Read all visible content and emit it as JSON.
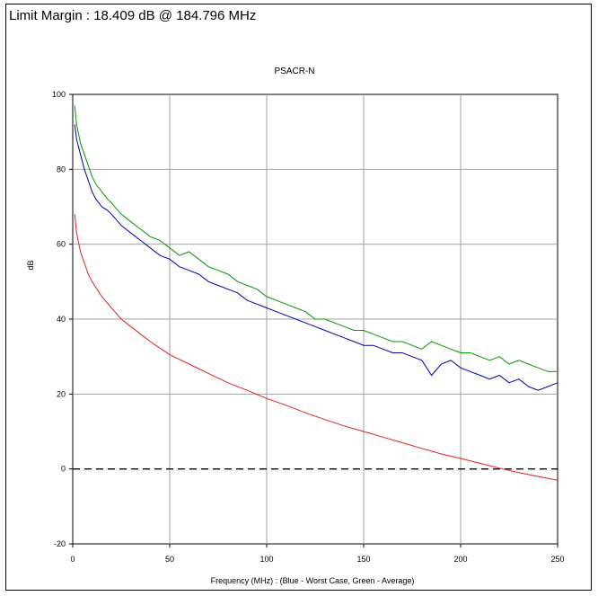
{
  "header": {
    "limit_margin": "Limit Margin : 18.409 dB @ 184.796 MHz"
  },
  "colors": {
    "worst_case": "#0000b0",
    "average": "#009900",
    "limit": "#e02020",
    "grid": "#a0a0a0",
    "zero_line": "#000000"
  },
  "chart_data": {
    "type": "line",
    "title": "PSACR-N",
    "xlabel": "Frequency (MHz) : (Blue - Worst Case, Green - Average)",
    "ylabel": "dB",
    "xlim": [
      0,
      250
    ],
    "ylim": [
      -20,
      100
    ],
    "xticks": [
      0,
      50,
      100,
      150,
      200,
      250
    ],
    "yticks": [
      -20,
      0,
      20,
      40,
      60,
      80,
      100
    ],
    "grid": true,
    "zero_line": "dashed",
    "series": [
      {
        "color": "#009900",
        "x": [
          1,
          2,
          4,
          6,
          8,
          10,
          12,
          15,
          18,
          20,
          25,
          30,
          35,
          40,
          45,
          50,
          55,
          60,
          65,
          70,
          75,
          80,
          85,
          90,
          95,
          100,
          105,
          110,
          115,
          120,
          125,
          130,
          135,
          140,
          145,
          150,
          155,
          160,
          165,
          170,
          175,
          180,
          185,
          190,
          195,
          200,
          205,
          210,
          215,
          220,
          225,
          230,
          235,
          240,
          245,
          250
        ],
        "y": [
          97,
          92,
          87,
          84,
          81,
          78,
          76,
          74,
          72,
          71,
          68,
          66,
          64,
          62,
          61,
          59,
          57,
          58,
          56,
          54,
          53,
          52,
          50,
          49,
          48,
          46,
          45,
          44,
          43,
          42,
          40,
          40,
          39,
          38,
          37,
          37,
          36,
          35,
          34,
          34,
          33,
          32,
          34,
          33,
          32,
          31,
          31,
          30,
          29,
          30,
          28,
          29,
          28,
          27,
          26,
          26
        ]
      },
      {
        "color": "#0000b0",
        "x": [
          1,
          2,
          4,
          6,
          8,
          10,
          12,
          15,
          18,
          20,
          25,
          30,
          35,
          40,
          45,
          50,
          55,
          60,
          65,
          70,
          75,
          80,
          85,
          90,
          95,
          100,
          105,
          110,
          115,
          120,
          125,
          130,
          135,
          140,
          145,
          150,
          155,
          160,
          165,
          170,
          175,
          180,
          185,
          190,
          195,
          200,
          205,
          210,
          215,
          220,
          225,
          230,
          235,
          240,
          245,
          250
        ],
        "y": [
          92,
          88,
          84,
          80,
          77,
          74,
          72,
          70,
          69,
          68,
          65,
          63,
          61,
          59,
          57,
          56,
          54,
          53,
          52,
          50,
          49,
          48,
          47,
          45,
          44,
          43,
          42,
          41,
          40,
          39,
          38,
          37,
          36,
          35,
          34,
          33,
          33,
          32,
          31,
          31,
          30,
          29,
          25,
          28,
          29,
          27,
          26,
          25,
          24,
          25,
          23,
          24,
          22,
          21,
          22,
          23
        ]
      },
      {
        "color": "#e02020",
        "x": [
          1,
          2,
          4,
          6,
          8,
          10,
          15,
          20,
          25,
          30,
          40,
          50,
          60,
          70,
          80,
          90,
          100,
          110,
          120,
          130,
          140,
          150,
          160,
          170,
          180,
          190,
          200,
          210,
          220,
          230,
          240,
          250
        ],
        "y": [
          68,
          63,
          58,
          55,
          52,
          50,
          46,
          43,
          40,
          38,
          34,
          30.5,
          28,
          25.5,
          23,
          21,
          18.8,
          17,
          15,
          13.2,
          11.5,
          10,
          8.5,
          7,
          5.5,
          4,
          2.8,
          1.5,
          0.2,
          -1,
          -2,
          -3
        ]
      }
    ]
  }
}
